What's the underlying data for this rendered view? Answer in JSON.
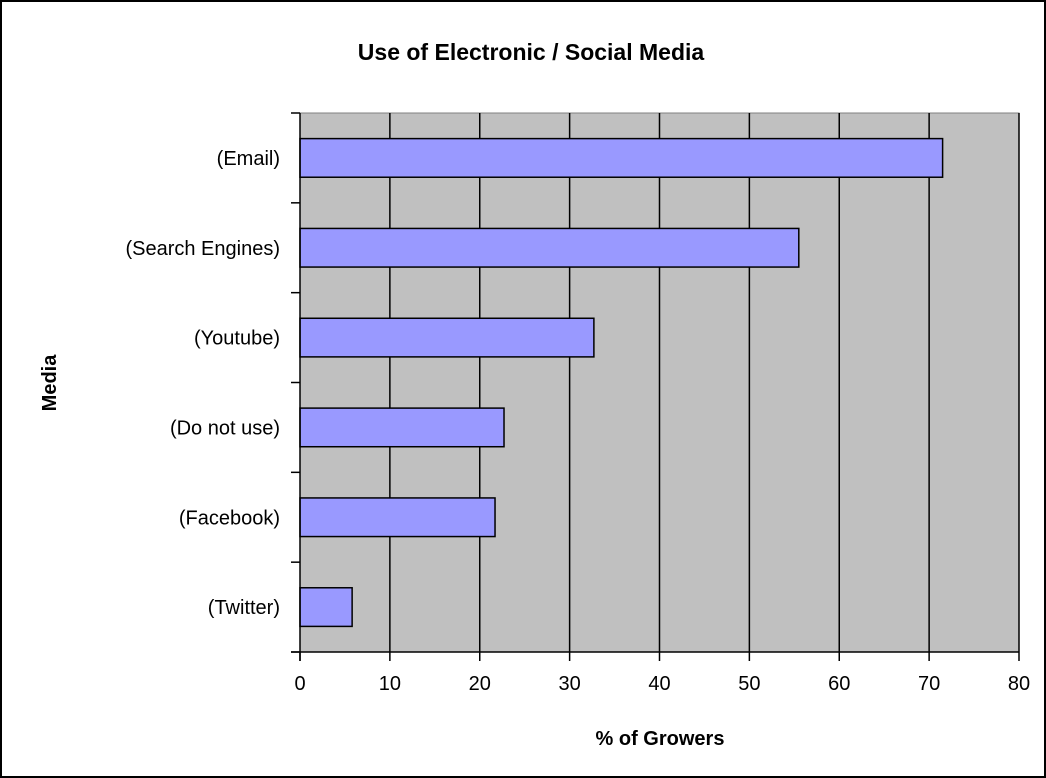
{
  "chart_data": {
    "type": "bar",
    "orientation": "horizontal",
    "title": "Use of Electronic / Social Media",
    "xlabel": "% of Growers",
    "ylabel": "Media",
    "categories": [
      "(Email)",
      "(Search Engines)",
      "(Youtube)",
      "(Do not use)",
      "(Facebook)",
      "(Twitter)"
    ],
    "values": [
      71.5,
      55.5,
      32.7,
      22.7,
      21.7,
      5.8
    ],
    "xlim": [
      0,
      80
    ],
    "xticks": [
      "0",
      "10",
      "20",
      "30",
      "40",
      "50",
      "60",
      "70",
      "80"
    ],
    "grid": "vertical",
    "legend": "none",
    "colors": {
      "bar_fill": "#9999ff",
      "bar_stroke": "#000000",
      "plot_background": "#c0c0c0",
      "gridline": "#000000"
    }
  }
}
